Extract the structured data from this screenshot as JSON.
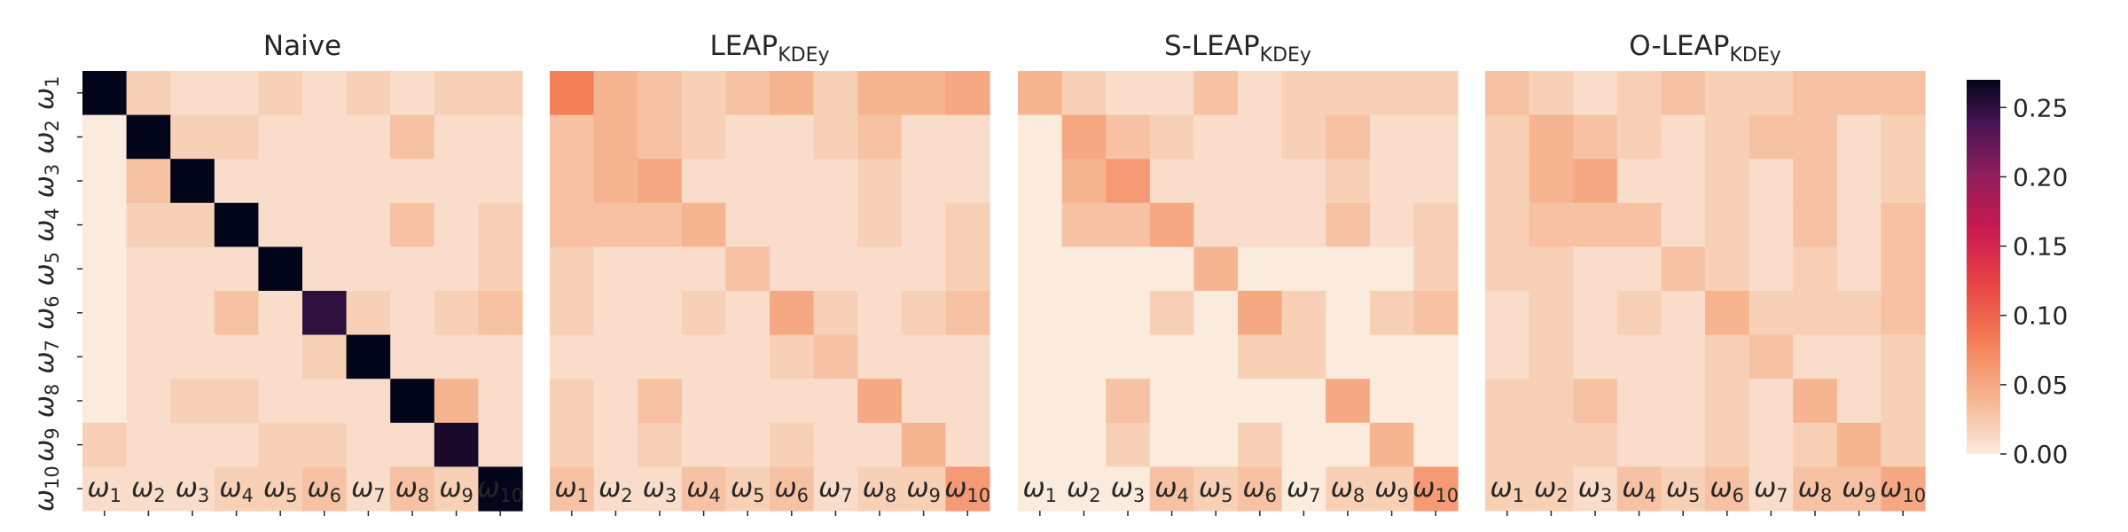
{
  "chart_data": {
    "type": "heatmap",
    "row_labels": [
      "ω1",
      "ω2",
      "ω3",
      "ω4",
      "ω5",
      "ω6",
      "ω7",
      "ω8",
      "ω9",
      "ω10"
    ],
    "col_labels": [
      "ω1",
      "ω2",
      "ω3",
      "ω4",
      "ω5",
      "ω6",
      "ω7",
      "ω8",
      "ω9",
      "ω10"
    ],
    "colorbar": {
      "min": 0.0,
      "max": 0.27,
      "ticks": [
        "0.00",
        "0.05",
        "0.10",
        "0.15",
        "0.20",
        "0.25"
      ],
      "colormap": "rocket_r"
    },
    "panels": [
      {
        "title": "Naive",
        "title_sub": "",
        "matrix": [
          [
            0.27,
            0.02,
            0.01,
            0.01,
            0.02,
            0.01,
            0.02,
            0.01,
            0.02,
            0.02
          ],
          [
            0.0,
            0.27,
            0.02,
            0.02,
            0.01,
            0.01,
            0.01,
            0.03,
            0.01,
            0.01
          ],
          [
            0.0,
            0.03,
            0.27,
            0.01,
            0.01,
            0.01,
            0.01,
            0.01,
            0.01,
            0.01
          ],
          [
            0.0,
            0.02,
            0.02,
            0.27,
            0.01,
            0.01,
            0.01,
            0.03,
            0.01,
            0.02
          ],
          [
            0.0,
            0.01,
            0.01,
            0.01,
            0.27,
            0.01,
            0.01,
            0.01,
            0.01,
            0.02
          ],
          [
            0.0,
            0.01,
            0.01,
            0.03,
            0.01,
            0.25,
            0.02,
            0.01,
            0.02,
            0.03
          ],
          [
            0.0,
            0.01,
            0.01,
            0.01,
            0.01,
            0.02,
            0.27,
            0.01,
            0.01,
            0.01
          ],
          [
            0.0,
            0.01,
            0.02,
            0.02,
            0.01,
            0.01,
            0.01,
            0.27,
            0.04,
            0.01
          ],
          [
            0.02,
            0.01,
            0.01,
            0.01,
            0.02,
            0.02,
            0.01,
            0.01,
            0.26,
            0.01
          ],
          [
            0.01,
            0.01,
            0.01,
            0.02,
            0.02,
            0.03,
            0.01,
            0.03,
            0.02,
            0.27
          ]
        ]
      },
      {
        "title": "LEAP",
        "title_sub": "KDEy",
        "matrix": [
          [
            0.08,
            0.04,
            0.03,
            0.02,
            0.03,
            0.04,
            0.02,
            0.04,
            0.04,
            0.05
          ],
          [
            0.03,
            0.04,
            0.03,
            0.02,
            0.01,
            0.01,
            0.02,
            0.03,
            0.01,
            0.01
          ],
          [
            0.03,
            0.04,
            0.05,
            0.01,
            0.01,
            0.01,
            0.01,
            0.02,
            0.01,
            0.01
          ],
          [
            0.03,
            0.03,
            0.03,
            0.04,
            0.01,
            0.01,
            0.01,
            0.02,
            0.01,
            0.02
          ],
          [
            0.02,
            0.01,
            0.01,
            0.01,
            0.03,
            0.01,
            0.01,
            0.01,
            0.01,
            0.02
          ],
          [
            0.02,
            0.01,
            0.01,
            0.02,
            0.01,
            0.05,
            0.02,
            0.01,
            0.02,
            0.03
          ],
          [
            0.01,
            0.01,
            0.01,
            0.01,
            0.01,
            0.02,
            0.03,
            0.01,
            0.01,
            0.01
          ],
          [
            0.02,
            0.01,
            0.03,
            0.01,
            0.01,
            0.01,
            0.01,
            0.05,
            0.01,
            0.01
          ],
          [
            0.02,
            0.01,
            0.02,
            0.01,
            0.01,
            0.02,
            0.01,
            0.01,
            0.04,
            0.01
          ],
          [
            0.03,
            0.01,
            0.01,
            0.03,
            0.02,
            0.03,
            0.01,
            0.02,
            0.02,
            0.06
          ]
        ]
      },
      {
        "title": "S-LEAP",
        "title_sub": "KDEy",
        "matrix": [
          [
            0.04,
            0.02,
            0.01,
            0.01,
            0.03,
            0.01,
            0.02,
            0.02,
            0.02,
            0.02
          ],
          [
            0.0,
            0.05,
            0.03,
            0.02,
            0.01,
            0.01,
            0.02,
            0.03,
            0.01,
            0.01
          ],
          [
            0.0,
            0.04,
            0.06,
            0.01,
            0.01,
            0.01,
            0.01,
            0.02,
            0.01,
            0.01
          ],
          [
            0.0,
            0.03,
            0.03,
            0.05,
            0.01,
            0.01,
            0.01,
            0.03,
            0.01,
            0.02
          ],
          [
            0.0,
            0.0,
            0.0,
            0.0,
            0.04,
            0.0,
            0.0,
            0.0,
            0.0,
            0.02
          ],
          [
            0.0,
            0.0,
            0.0,
            0.02,
            0.0,
            0.05,
            0.02,
            0.0,
            0.02,
            0.03
          ],
          [
            0.0,
            0.0,
            0.0,
            0.0,
            0.0,
            0.02,
            0.02,
            0.0,
            0.0,
            0.0
          ],
          [
            0.0,
            0.0,
            0.03,
            0.0,
            0.0,
            0.0,
            0.0,
            0.05,
            0.0,
            0.0
          ],
          [
            0.0,
            0.0,
            0.02,
            0.0,
            0.0,
            0.02,
            0.0,
            0.0,
            0.04,
            0.0
          ],
          [
            0.0,
            0.0,
            0.0,
            0.03,
            0.02,
            0.03,
            0.0,
            0.02,
            0.02,
            0.06
          ]
        ]
      },
      {
        "title": "O-LEAP",
        "title_sub": "KDEy",
        "matrix": [
          [
            0.03,
            0.02,
            0.01,
            0.02,
            0.03,
            0.02,
            0.02,
            0.03,
            0.03,
            0.03
          ],
          [
            0.02,
            0.04,
            0.03,
            0.02,
            0.01,
            0.02,
            0.03,
            0.03,
            0.01,
            0.02
          ],
          [
            0.02,
            0.04,
            0.05,
            0.01,
            0.01,
            0.02,
            0.01,
            0.03,
            0.01,
            0.02
          ],
          [
            0.02,
            0.03,
            0.03,
            0.03,
            0.01,
            0.02,
            0.01,
            0.03,
            0.01,
            0.03
          ],
          [
            0.02,
            0.02,
            0.01,
            0.01,
            0.03,
            0.02,
            0.01,
            0.02,
            0.01,
            0.03
          ],
          [
            0.01,
            0.02,
            0.01,
            0.02,
            0.01,
            0.04,
            0.02,
            0.02,
            0.02,
            0.03
          ],
          [
            0.01,
            0.02,
            0.01,
            0.01,
            0.01,
            0.02,
            0.03,
            0.01,
            0.01,
            0.02
          ],
          [
            0.02,
            0.02,
            0.03,
            0.01,
            0.01,
            0.02,
            0.01,
            0.04,
            0.01,
            0.02
          ],
          [
            0.02,
            0.02,
            0.02,
            0.01,
            0.01,
            0.02,
            0.01,
            0.02,
            0.04,
            0.02
          ],
          [
            0.02,
            0.02,
            0.01,
            0.03,
            0.02,
            0.03,
            0.01,
            0.03,
            0.03,
            0.05
          ]
        ]
      }
    ]
  }
}
